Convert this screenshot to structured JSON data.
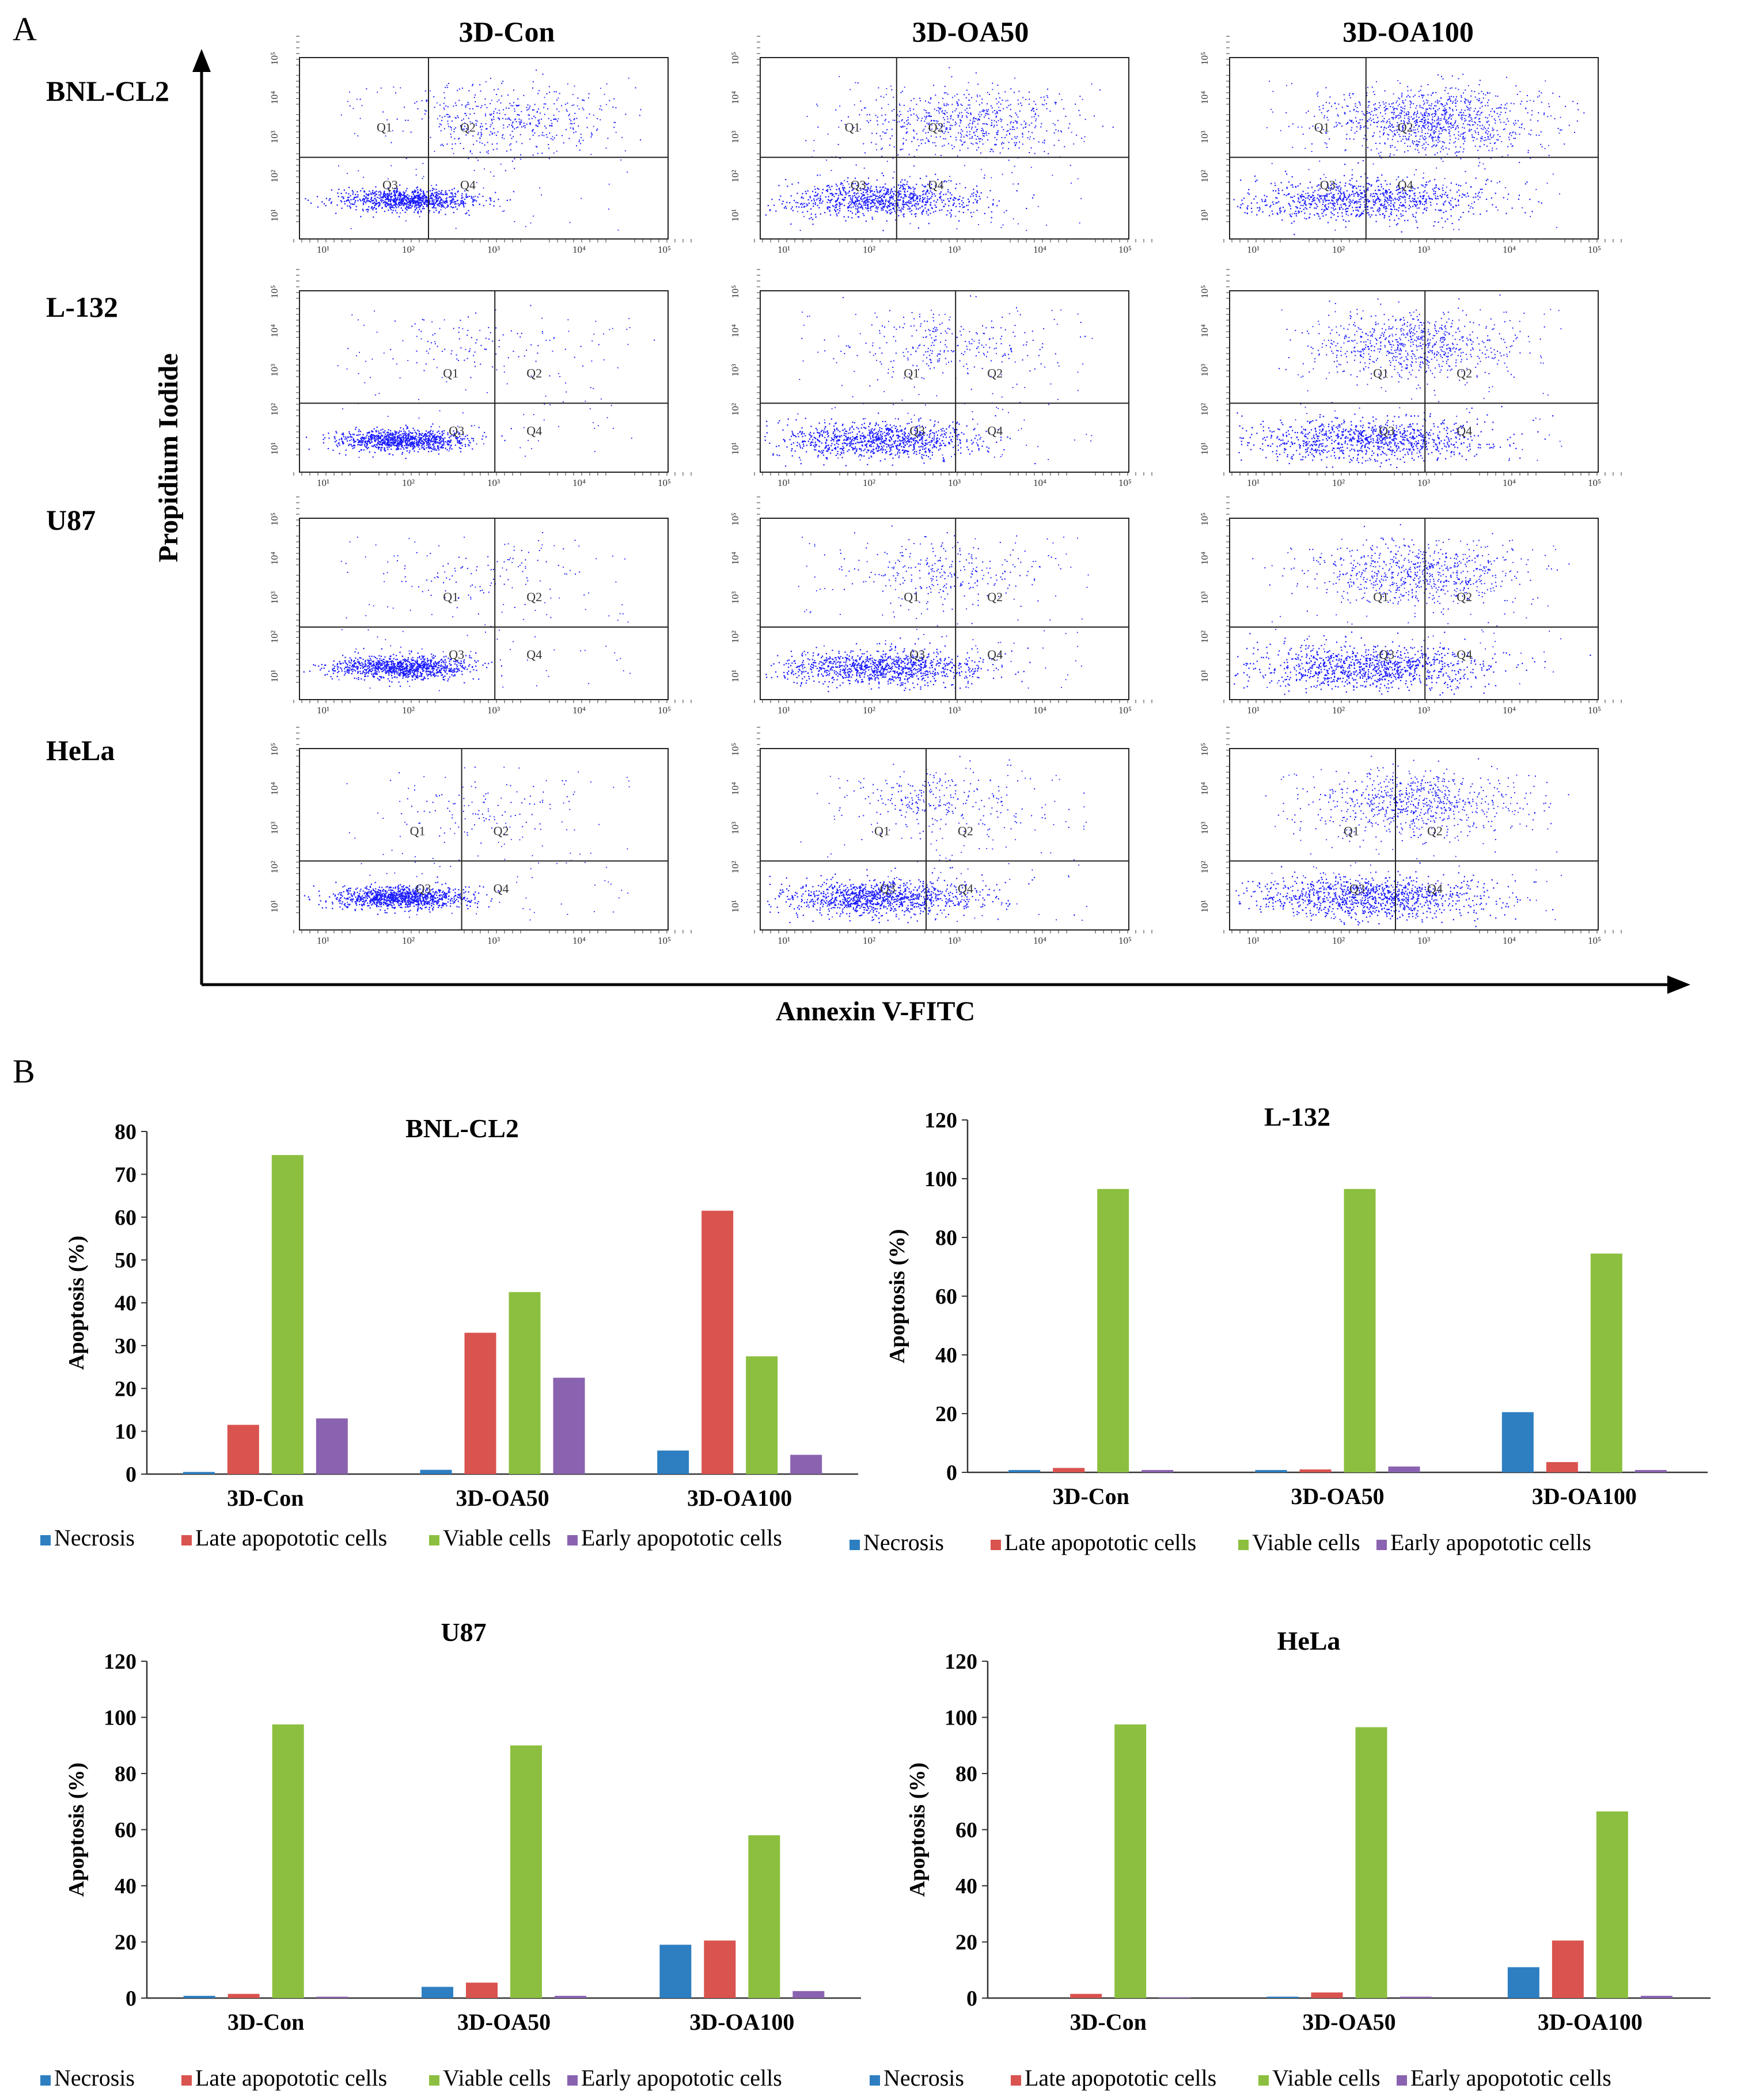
{
  "panels": {
    "A_label": "A",
    "B_label": "B"
  },
  "flow": {
    "columns": [
      "3D-Con",
      "3D-OA50",
      "3D-OA100"
    ],
    "rows": [
      "BNL-CL2",
      "L-132",
      "U87",
      "HeLa"
    ],
    "x_axis_title": "Annexin V-FITC",
    "y_axis_title": "Propidium Iodide",
    "quadrants": [
      "Q1",
      "Q2",
      "Q3",
      "Q4"
    ],
    "x_tick_labels": [
      "10¹",
      "10²",
      "10³",
      "10⁴",
      "10⁵"
    ],
    "y_tick_labels": [
      "10¹",
      "10²",
      "10³",
      "10⁴",
      "10⁵"
    ],
    "dot_color": "#1a1aff"
  },
  "legend": [
    "Necrosis",
    "Late apopototic cells",
    "Viable cells",
    "Early apopototic cells"
  ],
  "colors": {
    "Necrosis": "#2e7fc1",
    "Late apopototic cells": "#d9534f",
    "Viable cells": "#8cbf3f",
    "Early apopototic cells": "#8a63b0"
  },
  "chart_data": [
    {
      "type": "bar",
      "title": "BNL-CL2",
      "categories": [
        "3D-Con",
        "3D-OA50",
        "3D-OA100"
      ],
      "ylabel": "Apoptosis (%)",
      "ylim": [
        0,
        80
      ],
      "yticks": [
        0,
        10,
        20,
        30,
        40,
        50,
        60,
        70,
        80
      ],
      "series": [
        {
          "name": "Necrosis",
          "values": [
            0.5,
            1,
            5.5
          ]
        },
        {
          "name": "Late apopototic cells",
          "values": [
            11.5,
            33,
            61.5
          ]
        },
        {
          "name": "Viable cells",
          "values": [
            74.5,
            42.5,
            27.5
          ]
        },
        {
          "name": "Early apopototic cells",
          "values": [
            13,
            22.5,
            4.5
          ]
        }
      ]
    },
    {
      "type": "bar",
      "title": "L-132",
      "categories": [
        "3D-Con",
        "3D-OA50",
        "3D-OA100"
      ],
      "ylabel": "Apoptosis (%)",
      "ylim": [
        0,
        120
      ],
      "yticks": [
        0,
        20,
        40,
        60,
        80,
        100,
        120
      ],
      "series": [
        {
          "name": "Necrosis",
          "values": [
            0.8,
            0.8,
            20.5
          ]
        },
        {
          "name": "Late apopototic cells",
          "values": [
            1.5,
            1,
            3.5
          ]
        },
        {
          "name": "Viable cells",
          "values": [
            96.5,
            96.5,
            74.5
          ]
        },
        {
          "name": "Early apopototic cells",
          "values": [
            0.8,
            2,
            0.8
          ]
        }
      ]
    },
    {
      "type": "bar",
      "title": "U87",
      "categories": [
        "3D-Con",
        "3D-OA50",
        "3D-OA100"
      ],
      "ylabel": "Apoptosis (%)",
      "ylim": [
        0,
        120
      ],
      "yticks": [
        0,
        20,
        40,
        60,
        80,
        100,
        120
      ],
      "series": [
        {
          "name": "Necrosis",
          "values": [
            0.8,
            4,
            19
          ]
        },
        {
          "name": "Late apopototic cells",
          "values": [
            1.5,
            5.5,
            20.5
          ]
        },
        {
          "name": "Viable cells",
          "values": [
            97.5,
            90,
            58
          ]
        },
        {
          "name": "Early apopototic cells",
          "values": [
            0.5,
            0.8,
            2.5
          ]
        }
      ]
    },
    {
      "type": "bar",
      "title": "HeLa",
      "categories": [
        "3D-Con",
        "3D-OA50",
        "3D-OA100"
      ],
      "ylabel": "Apoptosis (%)",
      "ylim": [
        0,
        120
      ],
      "yticks": [
        0,
        20,
        40,
        60,
        80,
        100,
        120
      ],
      "series": [
        {
          "name": "Necrosis",
          "values": [
            0,
            0.5,
            11
          ]
        },
        {
          "name": "Late apopototic cells",
          "values": [
            1.5,
            2,
            20.5
          ]
        },
        {
          "name": "Viable cells",
          "values": [
            97.5,
            96.5,
            66.5
          ]
        },
        {
          "name": "Early apopototic cells",
          "values": [
            0.3,
            0.5,
            0.8
          ]
        }
      ]
    }
  ]
}
